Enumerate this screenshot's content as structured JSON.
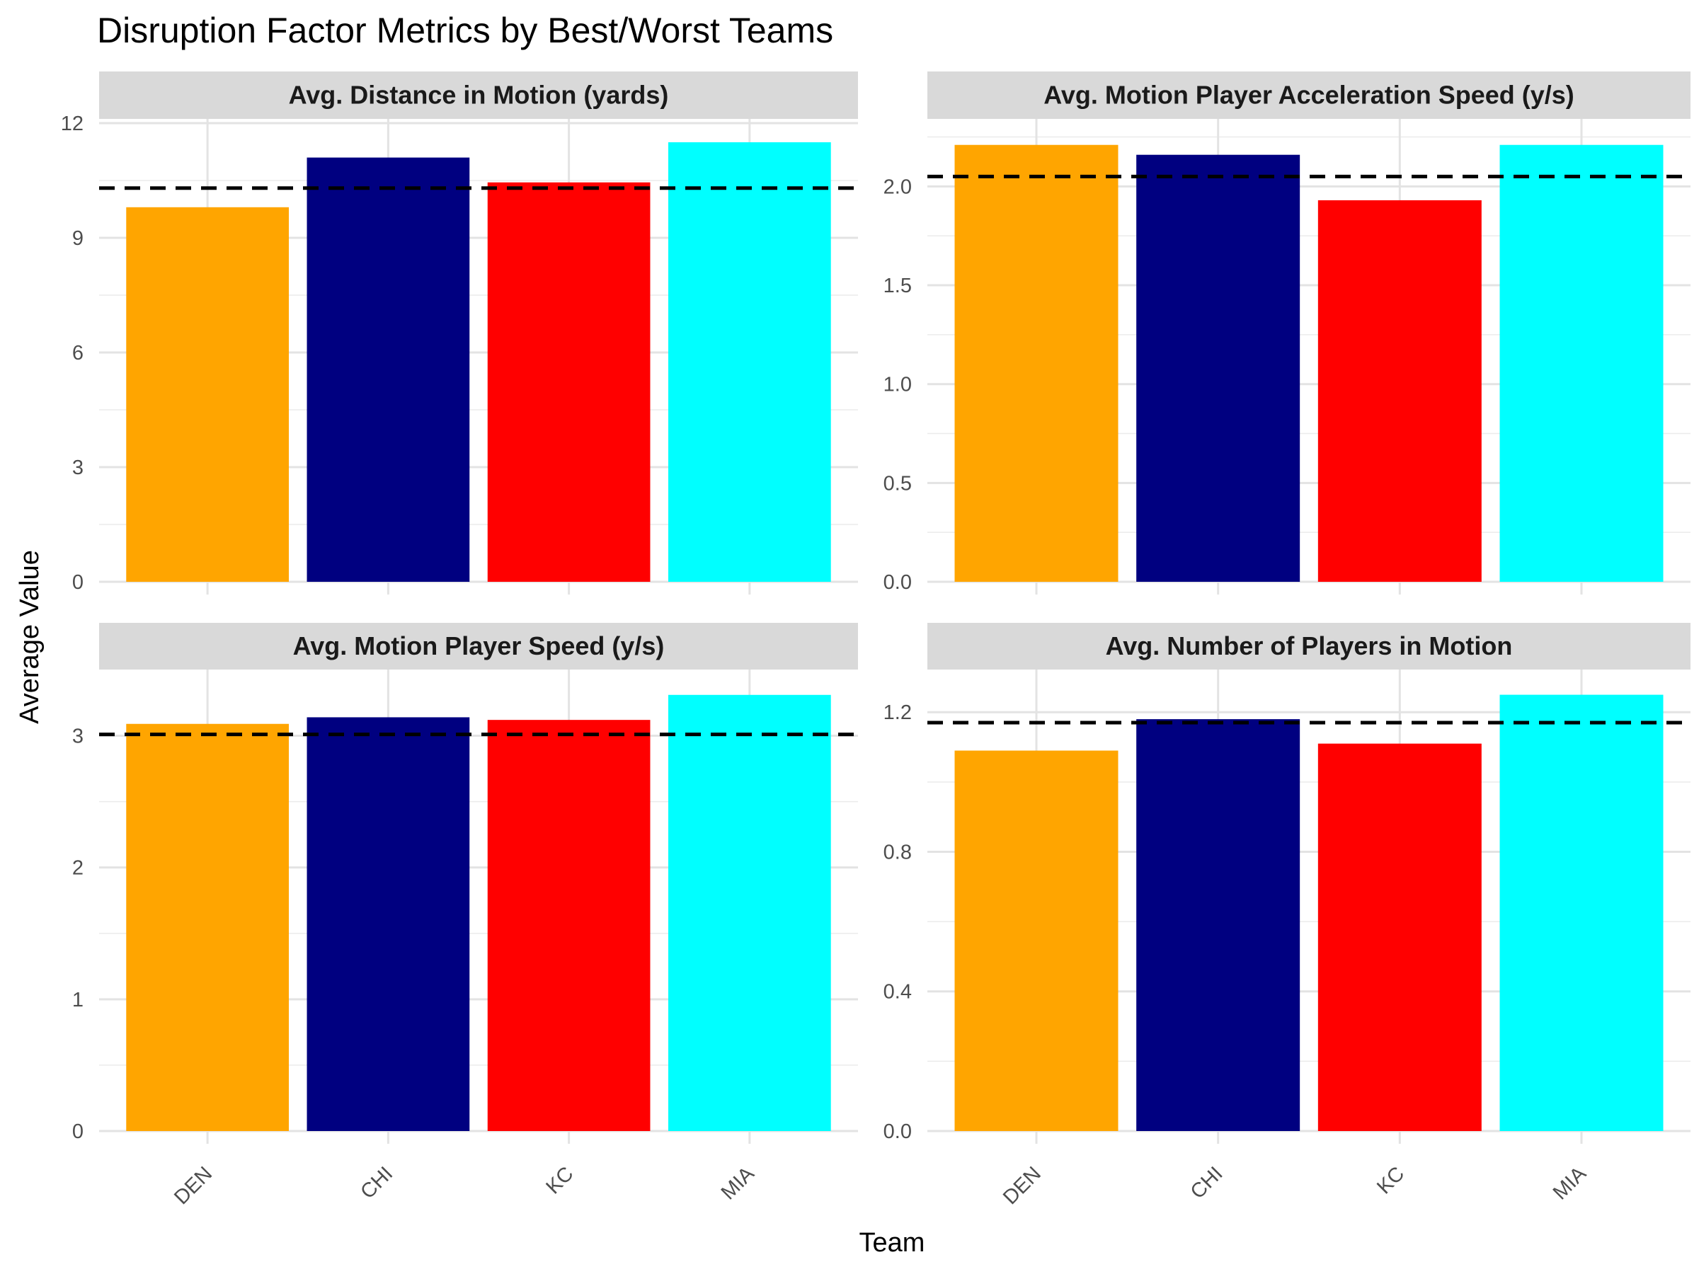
{
  "chart_data": {
    "type": "bar",
    "title": "Disruption Factor Metrics by Best/Worst Teams",
    "xlabel": "Team",
    "ylabel": "Average Value",
    "categories": [
      "DEN",
      "CHI",
      "KC",
      "MIA"
    ],
    "colors": {
      "DEN": "#FFA500",
      "CHI": "#000080",
      "KC": "#FF0000",
      "MIA": "#00FFFF"
    },
    "reference_line_style": "black dashed horizontal line (league average)",
    "grid": true,
    "legend": "none",
    "panels": [
      {
        "title": "Avg. Distance in Motion (yards)",
        "values": [
          9.8,
          11.1,
          10.45,
          11.5
        ],
        "reference_line": 10.3,
        "ylim": [
          0,
          12
        ],
        "yticks": [
          0,
          3,
          6,
          9,
          12
        ],
        "ytick_labels": [
          "0",
          "3",
          "6",
          "9",
          "12"
        ]
      },
      {
        "title": "Avg. Motion Player Acceleration Speed (y/s)",
        "values": [
          2.21,
          2.16,
          1.93,
          2.21
        ],
        "reference_line": 2.05,
        "ylim": [
          0,
          2.32
        ],
        "yticks": [
          0.0,
          0.5,
          1.0,
          1.5,
          2.0
        ],
        "ytick_labels": [
          "0.0",
          "0.5",
          "1.0",
          "1.5",
          "2.0"
        ]
      },
      {
        "title": "Avg. Motion Player Speed (y/s)",
        "values": [
          3.09,
          3.14,
          3.12,
          3.31
        ],
        "reference_line": 3.01,
        "ylim": [
          0,
          3.47
        ],
        "yticks": [
          0,
          1,
          2,
          3
        ],
        "ytick_labels": [
          "0",
          "1",
          "2",
          "3"
        ]
      },
      {
        "title": "Avg. Number of Players in Motion",
        "values": [
          1.09,
          1.18,
          1.11,
          1.25
        ],
        "reference_line": 1.17,
        "ylim": [
          0,
          1.31
        ],
        "yticks": [
          0.0,
          0.4,
          0.8,
          1.2
        ],
        "ytick_labels": [
          "0.0",
          "0.4",
          "0.8",
          "1.2"
        ]
      }
    ]
  }
}
